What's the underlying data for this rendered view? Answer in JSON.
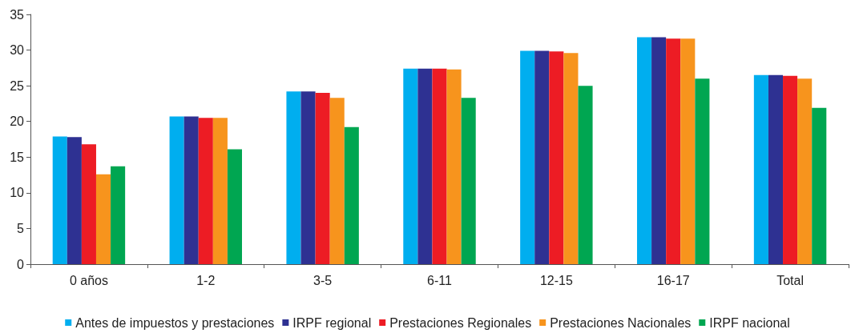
{
  "chart_data": {
    "type": "bar",
    "categories": [
      "0 años",
      "1-2",
      "3-5",
      "6-11",
      "12-15",
      "16-17",
      "Total"
    ],
    "series": [
      {
        "name": "Antes de impuestos y prestaciones",
        "color": "#00aeef",
        "values": [
          17.9,
          20.7,
          24.2,
          27.4,
          29.9,
          31.8,
          26.5
        ]
      },
      {
        "name": "IRPF regional",
        "color": "#2e3192",
        "values": [
          17.8,
          20.7,
          24.2,
          27.4,
          29.9,
          31.8,
          26.5
        ]
      },
      {
        "name": "Prestaciones Regionales",
        "color": "#ed1c24",
        "values": [
          16.8,
          20.5,
          24.0,
          27.4,
          29.8,
          31.6,
          26.4
        ]
      },
      {
        "name": "Prestaciones Nacionales",
        "color": "#f7941d",
        "values": [
          12.6,
          20.5,
          23.3,
          27.3,
          29.6,
          31.6,
          26.0
        ]
      },
      {
        "name": "IRPF nacional",
        "color": "#00a651",
        "values": [
          13.7,
          16.1,
          19.2,
          23.3,
          25.0,
          26.0,
          21.9
        ]
      }
    ],
    "ylim": [
      0,
      35
    ],
    "yticks": [
      0,
      5,
      10,
      15,
      20,
      25,
      30,
      35
    ],
    "grid": false,
    "legend": "bottom"
  }
}
